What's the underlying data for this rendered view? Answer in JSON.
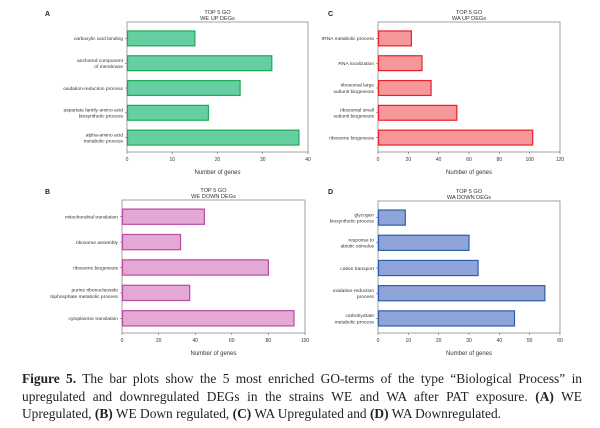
{
  "chart_data": [
    {
      "panel": "A",
      "type": "bar",
      "orientation": "horizontal",
      "title": "TOP 5 GO",
      "subtitle": "WE UP DEGs",
      "xlabel": "Number of genes",
      "ylabel": "",
      "xlim": [
        0,
        40
      ],
      "xticks": [
        0,
        10,
        20,
        30,
        40
      ],
      "grid": false,
      "categories": [
        [
          "carboxylic acid binding"
        ],
        [
          "anchored component",
          "of membrane"
        ],
        [
          "oxidation-reduction process"
        ],
        [
          "aspartate family amino acid",
          "biosynthetic process"
        ],
        [
          "alpha-amino acid",
          "metabolic process"
        ]
      ],
      "values": [
        15,
        32,
        25,
        18,
        38
      ],
      "fill": "#66CFA2",
      "stroke": "#22A85A"
    },
    {
      "panel": "B",
      "type": "bar",
      "orientation": "horizontal",
      "title": "TOP 5 GO",
      "subtitle": "WE DOWN DEGs",
      "xlabel": "Number of genes",
      "ylabel": "",
      "xlim": [
        0,
        100
      ],
      "xticks": [
        0,
        20,
        40,
        60,
        80,
        100
      ],
      "grid": false,
      "categories": [
        [
          "mitochondrial translation"
        ],
        [
          "ribosome assembly"
        ],
        [
          "ribosome biogenesis"
        ],
        [
          "purine ribonucleoside",
          "triphosphate metabolic process"
        ],
        [
          "cytoplasmic translation"
        ]
      ],
      "values": [
        45,
        32,
        80,
        37,
        94
      ],
      "fill": "#E3A8D3",
      "stroke": "#B94AA6"
    },
    {
      "panel": "C",
      "type": "bar",
      "orientation": "horizontal",
      "title": "TOP 5 GO",
      "subtitle": "WA UP DEGs",
      "xlabel": "Number of genes",
      "ylabel": "",
      "xlim": [
        0,
        120
      ],
      "xticks": [
        0,
        20,
        40,
        60,
        80,
        100,
        120
      ],
      "grid": false,
      "categories": [
        [
          "tRNA metabolic process"
        ],
        [
          "RNA localization"
        ],
        [
          "ribosomal large",
          "subunit biogenesis"
        ],
        [
          "ribosomal small",
          "subunit biogenesis"
        ],
        [
          "ribosome biogenesis"
        ]
      ],
      "values": [
        22,
        29,
        35,
        52,
        102
      ],
      "fill": "#F7979A",
      "stroke": "#E8202A"
    },
    {
      "panel": "D",
      "type": "bar",
      "orientation": "horizontal",
      "title": "TOP 5 GO",
      "subtitle": "WA DOWN DEGs",
      "xlabel": "Number of genes",
      "ylabel": "",
      "xlim": [
        0,
        60
      ],
      "xticks": [
        0,
        10,
        20,
        30,
        40,
        50,
        60
      ],
      "grid": false,
      "categories": [
        [
          "glycogen",
          "biosynthetic process"
        ],
        [
          "response to",
          "abiotic stimulus"
        ],
        [
          "cation transport"
        ],
        [
          "oxidation-reduction",
          "process"
        ],
        [
          "carbohydrate",
          "metabolic process"
        ]
      ],
      "values": [
        9,
        30,
        33,
        55,
        45
      ],
      "fill": "#8FA5D9",
      "stroke": "#2C5DAA"
    }
  ],
  "caption": {
    "label": "Figure 5.",
    "text_1": " The bar plots show the 5 most enriched GO-terms of the type “Biological Process” in upregulated and downregulated DEGs in the strains WE and WA after PAT exposure.  ",
    "a_label": "(A)",
    "a_text": " WE Upregulated, ",
    "b_label": "(B)",
    "b_text": " WE Down regulated, ",
    "c_label": "(C)",
    "c_text": " WA Upregulated and ",
    "d_label": "(D)",
    "d_text": " WA Downregulated."
  }
}
